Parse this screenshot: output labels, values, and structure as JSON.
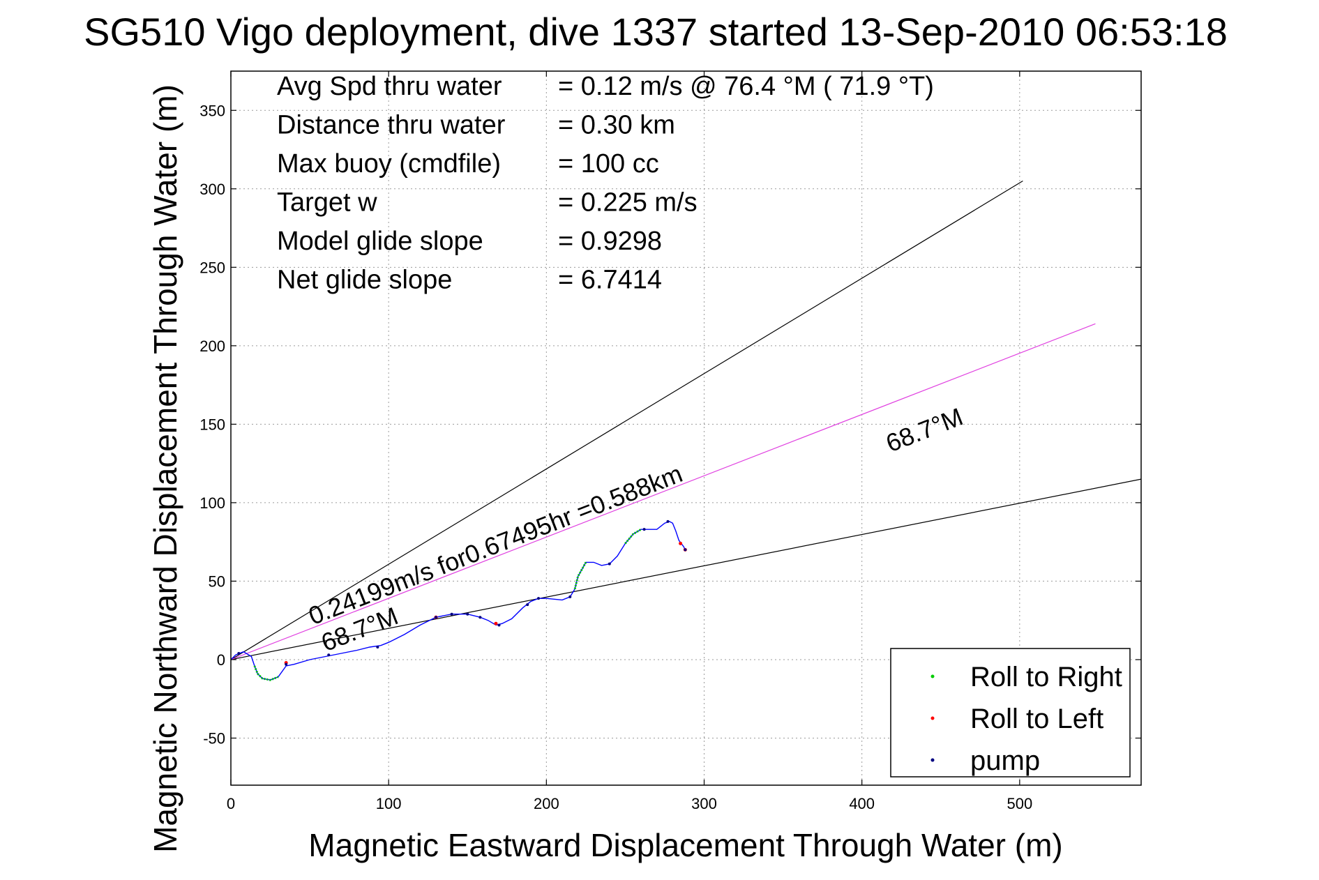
{
  "chart_data": {
    "type": "line",
    "title": "SG510 Vigo deployment, dive 1337 started 13-Sep-2010 06:53:18",
    "xlabel": "Magnetic Eastward Displacement Through Water (m)",
    "ylabel": "Magnetic Northward Displacement Through Water (m)",
    "xlim": [
      0,
      577
    ],
    "ylim": [
      -80,
      375
    ],
    "xticks": [
      0,
      100,
      200,
      300,
      400,
      500
    ],
    "yticks": [
      -50,
      0,
      50,
      100,
      150,
      200,
      250,
      300,
      350
    ],
    "grid": true,
    "legend_position": "bottom-right",
    "info_rows": [
      {
        "label": "Avg Spd thru water",
        "value": "=  0.12 m/s @  76.4 °M ( 71.9 °T)"
      },
      {
        "label": "Distance thru water",
        "value": "=  0.30 km"
      },
      {
        "label": "Max buoy (cmdfile)",
        "value": "= 100 cc"
      },
      {
        "label": "Target w",
        "value": "= 0.225 m/s"
      },
      {
        "label": "Model glide slope",
        "value": "= 0.9298"
      },
      {
        "label": "Net glide slope",
        "value": "= 6.7414"
      }
    ],
    "reference_lines": [
      {
        "color": "#000000",
        "points": [
          [
            0,
            0
          ],
          [
            502,
            305
          ]
        ]
      },
      {
        "color": "#000000",
        "points": [
          [
            0,
            0
          ],
          [
            577,
            115
          ]
        ]
      },
      {
        "color": "#e040e0",
        "points": [
          [
            0,
            0
          ],
          [
            548,
            214
          ]
        ]
      }
    ],
    "annotations": [
      {
        "text": "0.24199m/s for0.67495hr =0.588km",
        "x": 52,
        "y": 22,
        "angle": 21.3
      },
      {
        "text": "68.7°M",
        "x": 60,
        "y": 5,
        "angle": 21.3
      },
      {
        "text": "68.7°M",
        "x": 418,
        "y": 132,
        "angle": 21.3
      }
    ],
    "legend": [
      {
        "label": "Roll to Right",
        "color": "#00cc00"
      },
      {
        "label": "Roll to Left",
        "color": "#ff0000"
      },
      {
        "label": "pump",
        "color": "#000080"
      }
    ],
    "track": {
      "color": "#0000ff",
      "points": [
        [
          0,
          0
        ],
        [
          3,
          3
        ],
        [
          8,
          5
        ],
        [
          13,
          2
        ],
        [
          15,
          -4
        ],
        [
          17,
          -9
        ],
        [
          20,
          -12
        ],
        [
          25,
          -13
        ],
        [
          30,
          -11
        ],
        [
          35,
          -4
        ],
        [
          40,
          -3
        ],
        [
          50,
          0
        ],
        [
          60,
          2
        ],
        [
          70,
          4
        ],
        [
          80,
          6
        ],
        [
          88,
          8
        ],
        [
          95,
          9
        ],
        [
          100,
          11
        ],
        [
          110,
          16
        ],
        [
          120,
          22
        ],
        [
          130,
          27
        ],
        [
          140,
          29
        ],
        [
          150,
          29
        ],
        [
          158,
          27
        ],
        [
          163,
          25
        ],
        [
          168,
          22
        ],
        [
          172,
          23
        ],
        [
          178,
          26
        ],
        [
          185,
          33
        ],
        [
          190,
          37
        ],
        [
          195,
          39
        ],
        [
          200,
          39
        ],
        [
          210,
          38
        ],
        [
          215,
          40
        ],
        [
          218,
          45
        ],
        [
          220,
          53
        ],
        [
          225,
          62
        ],
        [
          230,
          62
        ],
        [
          235,
          60
        ],
        [
          240,
          61
        ],
        [
          245,
          66
        ],
        [
          250,
          74
        ],
        [
          255,
          80
        ],
        [
          260,
          83
        ],
        [
          265,
          83
        ],
        [
          270,
          83
        ],
        [
          275,
          87
        ],
        [
          278,
          88
        ],
        [
          280,
          87
        ],
        [
          282,
          82
        ],
        [
          284,
          76
        ],
        [
          287,
          72
        ],
        [
          288,
          70
        ]
      ],
      "roll_right_segments": [
        [
          [
            15,
            -4
          ],
          [
            17,
            -9
          ],
          [
            20,
            -12
          ],
          [
            25,
            -13
          ],
          [
            30,
            -11
          ]
        ],
        [
          [
            218,
            45
          ],
          [
            220,
            53
          ],
          [
            225,
            62
          ]
        ],
        [
          [
            250,
            74
          ],
          [
            255,
            80
          ],
          [
            260,
            83
          ]
        ]
      ],
      "roll_left_points": [
        [
          35,
          -2
        ],
        [
          130,
          27
        ],
        [
          168,
          23
        ],
        [
          285,
          74
        ],
        [
          288,
          70
        ]
      ],
      "pump_points": [
        [
          5,
          4
        ],
        [
          35,
          -3
        ],
        [
          62,
          3
        ],
        [
          93,
          8
        ],
        [
          130,
          27
        ],
        [
          140,
          29
        ],
        [
          150,
          29
        ],
        [
          158,
          27
        ],
        [
          170,
          22
        ],
        [
          188,
          35
        ],
        [
          195,
          39
        ],
        [
          215,
          40
        ],
        [
          240,
          61
        ],
        [
          262,
          83
        ],
        [
          277,
          88
        ],
        [
          288,
          70
        ]
      ]
    }
  }
}
